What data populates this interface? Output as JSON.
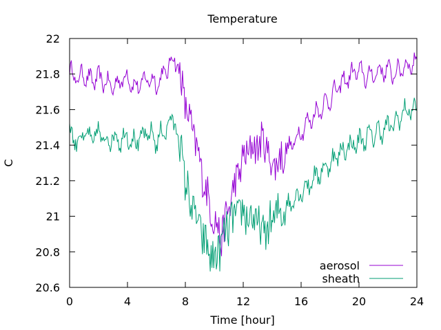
{
  "chart_data": {
    "type": "line",
    "title": "Temperature",
    "xlabel": "Time [hour]",
    "ylabel": "C",
    "xlim": [
      0,
      24
    ],
    "ylim": [
      20.6,
      22.0
    ],
    "xticks": [
      0,
      4,
      8,
      12,
      16,
      20,
      24
    ],
    "yticks": [
      20.6,
      20.8,
      21.0,
      21.2,
      21.4,
      21.6,
      21.8,
      22.0
    ],
    "ytick_labels": [
      "20.6",
      "20.8",
      "21",
      "21.2",
      "21.4",
      "21.6",
      "21.8",
      "22"
    ],
    "grid": false,
    "legend_position": "bottom-right",
    "series": [
      {
        "name": "aerosol",
        "color": "#9400d3",
        "x": [
          0,
          0.5,
          1,
          1.5,
          2,
          2.5,
          3,
          3.5,
          4,
          4.5,
          5,
          5.5,
          6,
          6.5,
          7,
          7.25,
          7.5,
          7.75,
          8,
          8.5,
          9,
          9.5,
          10,
          10.5,
          11,
          11.5,
          12,
          12.5,
          13,
          13.5,
          14,
          14.5,
          15,
          15.5,
          16,
          16.5,
          17,
          17.5,
          18,
          18.5,
          19,
          19.5,
          20,
          20.5,
          21,
          21.5,
          22,
          22.5,
          23,
          23.5,
          24
        ],
        "y": [
          21.82,
          21.77,
          21.8,
          21.76,
          21.78,
          21.75,
          21.73,
          21.76,
          21.79,
          21.72,
          21.75,
          21.78,
          21.74,
          21.8,
          21.86,
          21.9,
          21.84,
          21.76,
          21.62,
          21.48,
          21.3,
          21.12,
          20.98,
          20.88,
          21.05,
          21.2,
          21.32,
          21.38,
          21.4,
          21.42,
          21.28,
          21.32,
          21.36,
          21.42,
          21.48,
          21.53,
          21.58,
          21.62,
          21.66,
          21.72,
          21.76,
          21.8,
          21.82,
          21.78,
          21.8,
          21.82,
          21.82,
          21.8,
          21.84,
          21.85,
          21.87
        ]
      },
      {
        "name": "sheath",
        "color": "#009e73",
        "x": [
          0,
          0.5,
          1,
          1.5,
          2,
          2.5,
          3,
          3.5,
          4,
          4.5,
          5,
          5.5,
          6,
          6.5,
          7,
          7.25,
          7.5,
          7.75,
          8,
          8.5,
          9,
          9.5,
          10,
          10.5,
          11,
          11.5,
          12,
          12.5,
          13,
          13.5,
          14,
          14.5,
          15,
          15.5,
          16,
          16.5,
          17,
          17.5,
          18,
          18.5,
          19,
          19.5,
          20,
          20.5,
          21,
          21.5,
          22,
          22.5,
          23,
          23.5,
          24
        ],
        "y": [
          21.48,
          21.42,
          21.46,
          21.43,
          21.47,
          21.42,
          21.45,
          21.43,
          21.46,
          21.41,
          21.44,
          21.47,
          21.42,
          21.48,
          21.53,
          21.55,
          21.44,
          21.36,
          21.18,
          21.05,
          20.92,
          20.82,
          20.75,
          20.85,
          20.95,
          21.0,
          21.02,
          21.0,
          20.95,
          20.9,
          20.98,
          21.02,
          21.05,
          21.1,
          21.14,
          21.18,
          21.22,
          21.26,
          21.3,
          21.34,
          21.38,
          21.4,
          21.42,
          21.44,
          21.46,
          21.48,
          21.5,
          21.52,
          21.58,
          21.6,
          21.6
        ]
      }
    ]
  }
}
